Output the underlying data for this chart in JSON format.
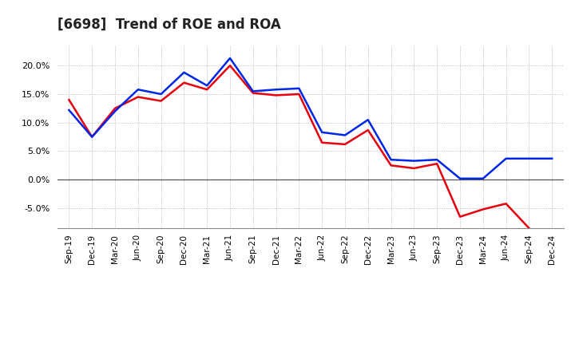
{
  "title": "[6698]  Trend of ROE and ROA",
  "x_labels": [
    "Sep-19",
    "Dec-19",
    "Mar-20",
    "Jun-20",
    "Sep-20",
    "Dec-20",
    "Mar-21",
    "Jun-21",
    "Sep-21",
    "Dec-21",
    "Mar-22",
    "Jun-22",
    "Sep-22",
    "Dec-22",
    "Mar-23",
    "Jun-23",
    "Sep-23",
    "Dec-23",
    "Mar-24",
    "Jun-24",
    "Sep-24",
    "Dec-24"
  ],
  "roe": [
    14.0,
    7.5,
    12.5,
    14.5,
    13.8,
    17.0,
    15.8,
    20.0,
    15.2,
    14.8,
    15.0,
    6.5,
    6.2,
    8.7,
    2.5,
    2.0,
    2.8,
    -6.5,
    -5.2,
    -4.2,
    -8.5,
    null
  ],
  "roa": [
    12.2,
    7.5,
    12.0,
    15.8,
    15.0,
    18.8,
    16.5,
    21.3,
    15.5,
    15.8,
    16.0,
    8.3,
    7.8,
    10.5,
    3.5,
    3.3,
    3.5,
    0.2,
    0.2,
    3.7,
    3.7,
    3.7
  ],
  "roe_color": "#e8000d",
  "roa_color": "#0027e8",
  "background_color": "#ffffff",
  "plot_bg_color": "#ffffff",
  "grid_color": "#aaaaaa",
  "ylim": [
    -8.5,
    23.5
  ],
  "yticks": [
    -5.0,
    0.0,
    5.0,
    10.0,
    15.0,
    20.0
  ],
  "line_width": 1.8,
  "title_fontsize": 12,
  "tick_fontsize": 7.5
}
